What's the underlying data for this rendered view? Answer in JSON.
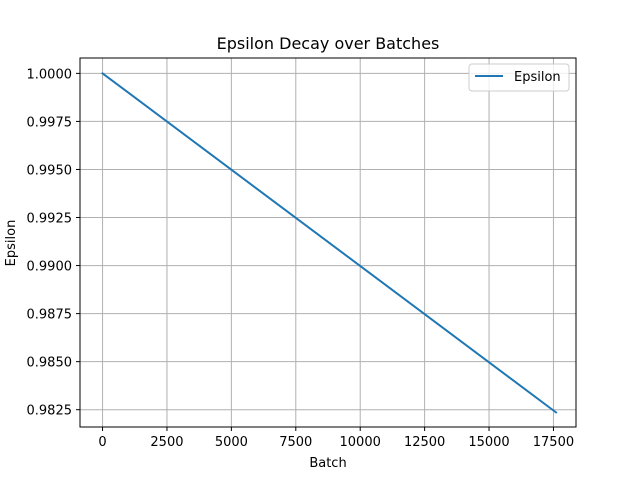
{
  "chart_data": {
    "type": "line",
    "title": "Epsilon Decay over Batches",
    "xlabel": "Batch",
    "ylabel": "Epsilon",
    "xlim": [
      -875,
      18375
    ],
    "ylim": [
      0.9816,
      1.0008
    ],
    "xticks": [
      0,
      2500,
      5000,
      7500,
      10000,
      12500,
      15000,
      17500
    ],
    "xtick_labels": [
      "0",
      "2500",
      "5000",
      "7500",
      "10000",
      "12500",
      "15000",
      "17500"
    ],
    "yticks": [
      0.9825,
      0.985,
      0.9875,
      0.99,
      0.9925,
      0.995,
      0.9975,
      1.0
    ],
    "ytick_labels": [
      "0.9825",
      "0.9850",
      "0.9875",
      "0.9900",
      "0.9925",
      "0.9950",
      "0.9975",
      "1.0000"
    ],
    "grid": true,
    "legend_position": "top-right",
    "series": [
      {
        "name": "Epsilon",
        "color": "#1f77b4",
        "x": [
          0,
          17600
        ],
        "values": [
          1.0,
          0.98236
        ]
      }
    ]
  }
}
